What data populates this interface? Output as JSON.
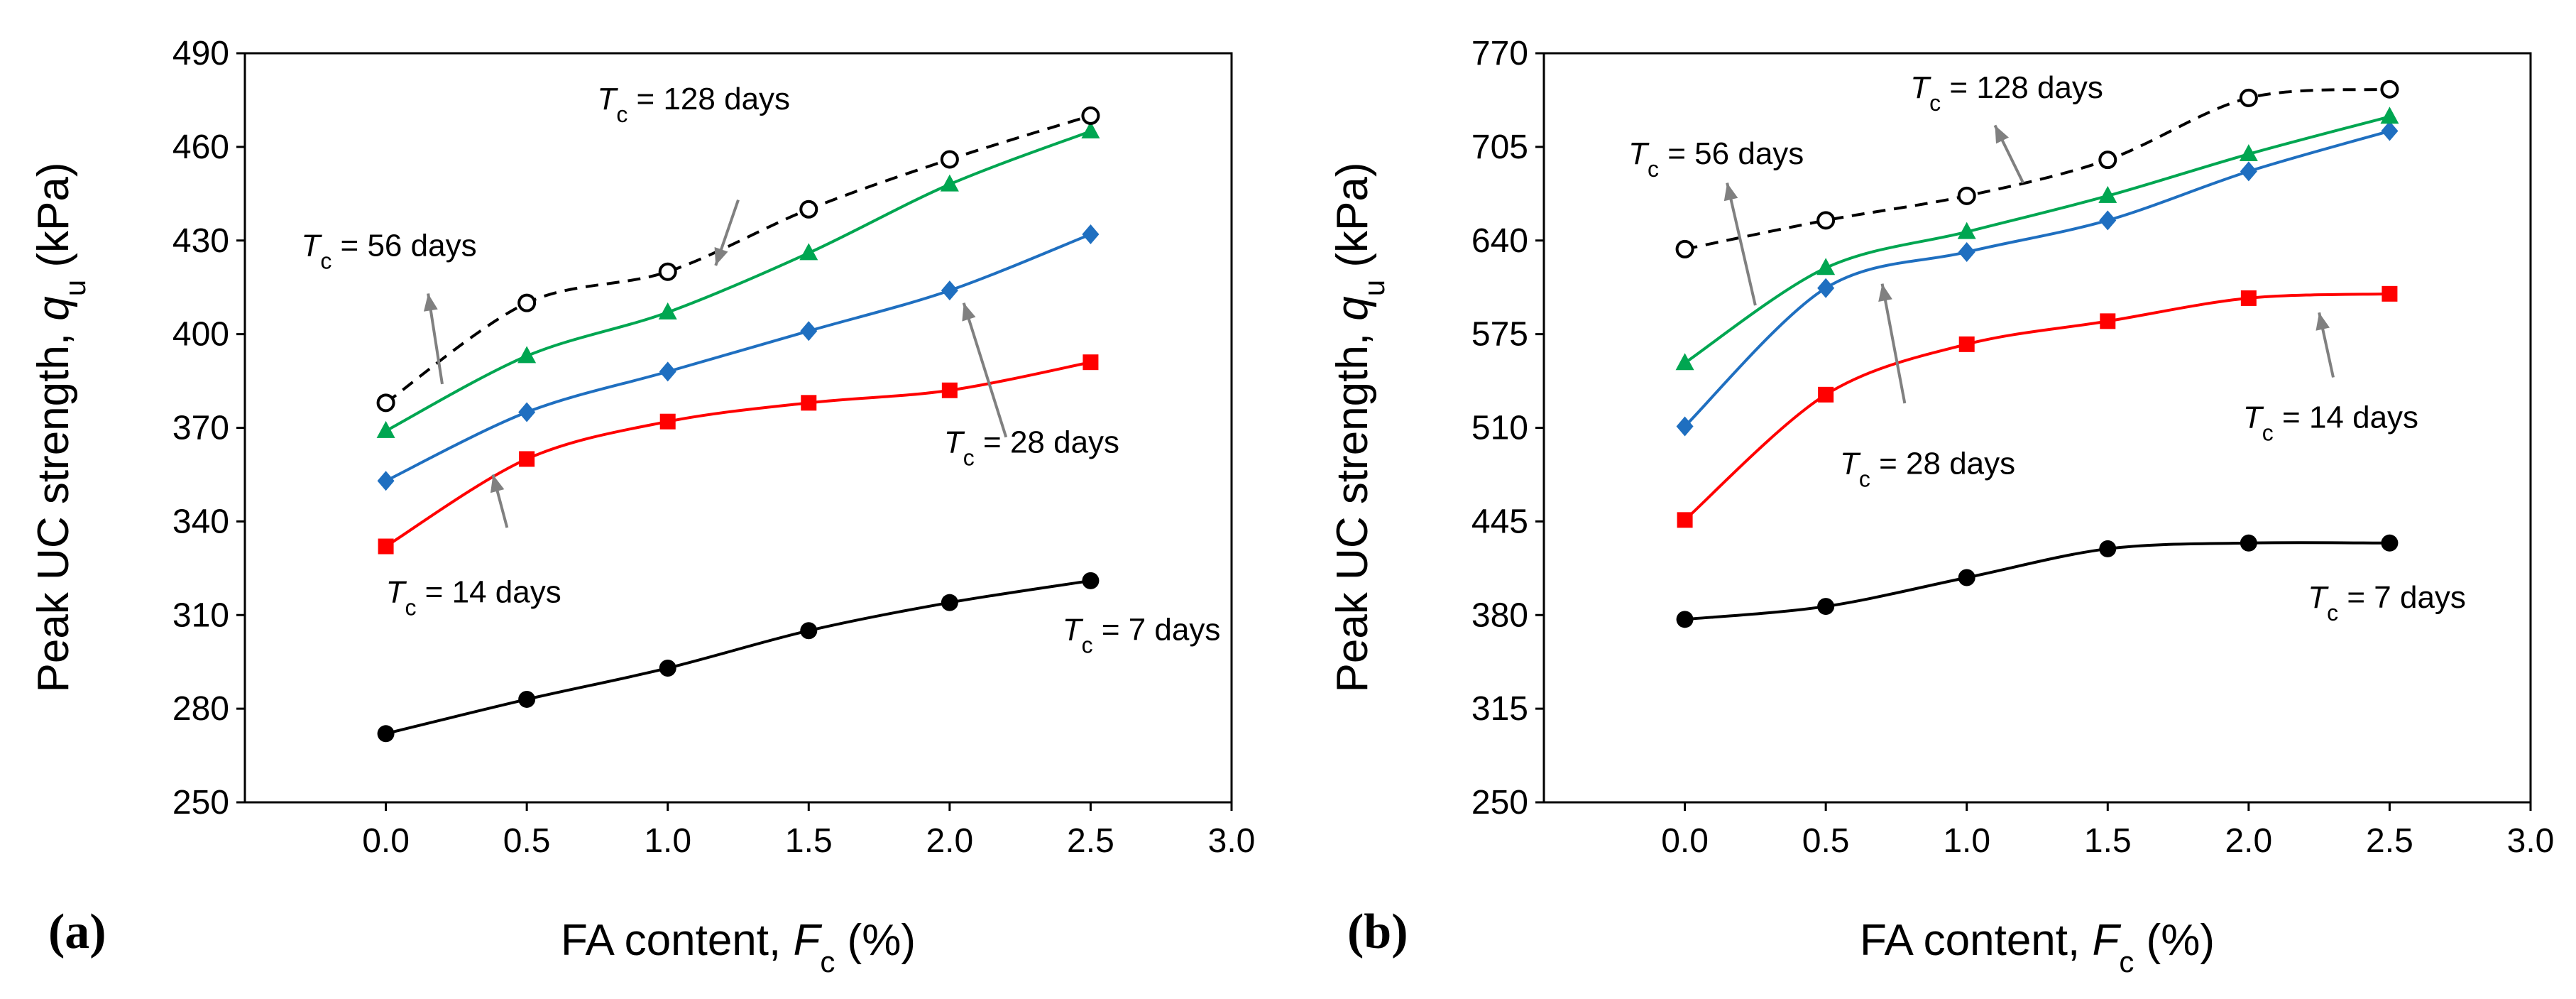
{
  "chart_data": [
    {
      "type": "line",
      "panel_label": "(a)",
      "xlabel": {
        "main": "FA content, ",
        "var": "F",
        "sub": "c",
        "unit": " (%)"
      },
      "ylabel": {
        "main": "Peak UC strength, ",
        "var": "q",
        "sub": "u",
        "unit": " (kPa)"
      },
      "xlim": [
        -0.5,
        3.0
      ],
      "ylim": [
        250,
        490
      ],
      "xticks": [
        "0.0",
        "0.5",
        "1.0",
        "1.5",
        "2.0",
        "2.5",
        "3.0"
      ],
      "yticks": [
        "250",
        "280",
        "310",
        "340",
        "370",
        "400",
        "430",
        "460",
        "490"
      ],
      "x": [
        0.0,
        0.5,
        1.0,
        1.5,
        2.0,
        2.5
      ],
      "series": [
        {
          "name": "Tc = 7 days",
          "color": "#000000",
          "marker": "circle",
          "dash": false,
          "values": [
            272,
            283,
            293,
            305,
            314,
            321
          ]
        },
        {
          "name": "Tc = 14 days",
          "color": "#ff0000",
          "marker": "square",
          "dash": false,
          "values": [
            332,
            360,
            372,
            378,
            382,
            391
          ]
        },
        {
          "name": "Tc = 28 days",
          "color": "#1f6fc0",
          "marker": "diamond",
          "dash": false,
          "values": [
            353,
            375,
            388,
            401,
            414,
            432
          ]
        },
        {
          "name": "Tc = 56 days",
          "color": "#00a651",
          "marker": "triangle",
          "dash": false,
          "values": [
            369,
            393,
            407,
            426,
            448,
            465
          ]
        },
        {
          "name": "Tc = 128 days",
          "color": "#000000",
          "marker": "open-circle",
          "dash": true,
          "values": [
            378,
            410,
            420,
            440,
            456,
            470
          ]
        }
      ],
      "annotations": [
        {
          "var": "T",
          "sub": "c",
          "text": " = 128 days",
          "x": 0.75,
          "y": 472,
          "arrow": [
            1.25,
            443,
            1.17,
            422
          ]
        },
        {
          "var": "T",
          "sub": "c",
          "text": " = 56 days",
          "x": -0.3,
          "y": 425,
          "arrow": [
            0.2,
            384,
            0.15,
            413
          ]
        },
        {
          "var": "T",
          "sub": "c",
          "text": " = 28 days",
          "x": 1.98,
          "y": 362,
          "arrow": [
            2.2,
            367,
            2.05,
            410
          ]
        },
        {
          "var": "T",
          "sub": "c",
          "text": " = 14 days",
          "x": 0.0,
          "y": 314,
          "arrow": [
            0.43,
            338,
            0.38,
            355
          ]
        },
        {
          "var": "T",
          "sub": "c",
          "text": " = 7 days",
          "x": 2.4,
          "y": 302,
          "arrow": null
        }
      ]
    },
    {
      "type": "line",
      "panel_label": "(b)",
      "xlabel": {
        "main": "FA content, ",
        "var": "F",
        "sub": "c",
        "unit": " (%)"
      },
      "ylabel": {
        "main": "Peak UC strength, ",
        "var": "q",
        "sub": "u",
        "unit": " (kPa)"
      },
      "xlim": [
        -0.5,
        3.0
      ],
      "ylim": [
        250,
        770
      ],
      "xticks": [
        "0.0",
        "0.5",
        "1.0",
        "1.5",
        "2.0",
        "2.5",
        "3.0"
      ],
      "yticks": [
        "250",
        "315",
        "380",
        "445",
        "510",
        "575",
        "640",
        "705",
        "770"
      ],
      "x": [
        0.0,
        0.5,
        1.0,
        1.5,
        2.0,
        2.5
      ],
      "series": [
        {
          "name": "Tc = 7 days",
          "color": "#000000",
          "marker": "circle",
          "dash": false,
          "values": [
            377,
            386,
            406,
            426,
            430,
            430
          ]
        },
        {
          "name": "Tc = 14 days",
          "color": "#ff0000",
          "marker": "square",
          "dash": false,
          "values": [
            446,
            533,
            568,
            584,
            600,
            603
          ]
        },
        {
          "name": "Tc = 28 days",
          "color": "#1f6fc0",
          "marker": "diamond",
          "dash": false,
          "values": [
            511,
            607,
            632,
            654,
            688,
            716
          ]
        },
        {
          "name": "Tc = 56 days",
          "color": "#00a651",
          "marker": "triangle",
          "dash": false,
          "values": [
            555,
            621,
            646,
            671,
            700,
            726
          ]
        },
        {
          "name": "Tc = 128 days",
          "color": "#000000",
          "marker": "open-circle",
          "dash": true,
          "values": [
            634,
            654,
            671,
            696,
            739,
            745
          ]
        }
      ],
      "annotations": [
        {
          "var": "T",
          "sub": "c",
          "text": " = 128 days",
          "x": 0.8,
          "y": 739,
          "arrow": [
            1.2,
            680,
            1.1,
            720
          ]
        },
        {
          "var": "T",
          "sub": "c",
          "text": " = 56 days",
          "x": -0.2,
          "y": 693,
          "arrow": [
            0.25,
            595,
            0.15,
            680
          ]
        },
        {
          "var": "T",
          "sub": "c",
          "text": " = 28 days",
          "x": 0.55,
          "y": 478,
          "arrow": [
            0.78,
            527,
            0.7,
            610
          ]
        },
        {
          "var": "T",
          "sub": "c",
          "text": " = 14 days",
          "x": 1.98,
          "y": 510,
          "arrow": [
            2.3,
            545,
            2.25,
            590
          ]
        },
        {
          "var": "T",
          "sub": "c",
          "text": " = 7 days",
          "x": 2.21,
          "y": 385,
          "arrow": null
        }
      ]
    }
  ]
}
